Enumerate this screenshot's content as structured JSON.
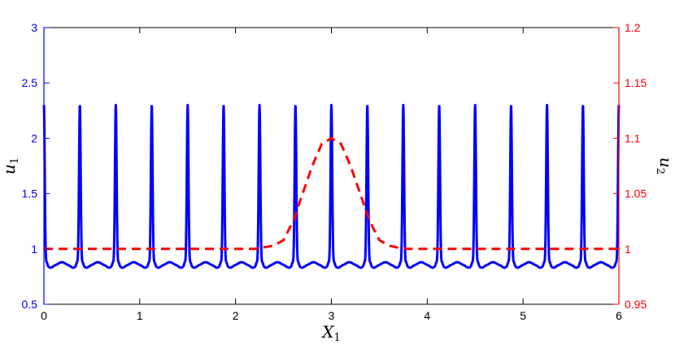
{
  "chart_data": {
    "type": "line",
    "title": "",
    "xlabel": {
      "base": "X",
      "sub": "1"
    },
    "ylabel_left": {
      "base": "u",
      "sub": "1"
    },
    "ylabel_right": {
      "base": "u",
      "sub": "2"
    },
    "xlim": [
      0,
      6
    ],
    "ylim_left": [
      0.5,
      3
    ],
    "ylim_right": [
      0.95,
      1.2
    ],
    "xticks": [
      "0",
      "1",
      "2",
      "3",
      "4",
      "5",
      "6"
    ],
    "yticks_left": [
      "0.5",
      "1",
      "1.5",
      "2",
      "2.5",
      "3"
    ],
    "yticks_right": [
      "0.95",
      "1",
      "1.05",
      "1.1",
      "1.15",
      "1.2"
    ],
    "grid": false,
    "legend": "none",
    "colors": {
      "series1": "#0000ff",
      "series2": "#ff0000",
      "left_axis": "#0000ff",
      "right_axis": "#ff0000",
      "frame": "#000000"
    },
    "series": [
      {
        "axis": "left",
        "style": "solid",
        "color": "#0000ff",
        "description_values": {
          "spike_positions": [
            0,
            0.375,
            0.75,
            1.125,
            1.5,
            1.875,
            2.25,
            2.625,
            3,
            3.375,
            3.75,
            4.125,
            4.5,
            4.875,
            5.25,
            5.625,
            6
          ],
          "spike_peak": 2.3,
          "base_level": 0.85,
          "mid_bump_level": 0.88
        }
      },
      {
        "axis": "right",
        "style": "dashed",
        "color": "#ff0000",
        "points": [
          [
            0,
            1.0
          ],
          [
            2.2,
            1.0
          ],
          [
            2.4,
            1.003
          ],
          [
            2.5,
            1.008
          ],
          [
            2.6,
            1.025
          ],
          [
            2.7,
            1.05
          ],
          [
            2.8,
            1.075
          ],
          [
            2.9,
            1.095
          ],
          [
            3.0,
            1.1
          ],
          [
            3.1,
            1.095
          ],
          [
            3.2,
            1.075
          ],
          [
            3.3,
            1.05
          ],
          [
            3.4,
            1.025
          ],
          [
            3.5,
            1.008
          ],
          [
            3.6,
            1.003
          ],
          [
            3.7,
            1.001
          ],
          [
            3.8,
            1.0
          ],
          [
            6,
            1.0
          ]
        ]
      }
    ]
  }
}
